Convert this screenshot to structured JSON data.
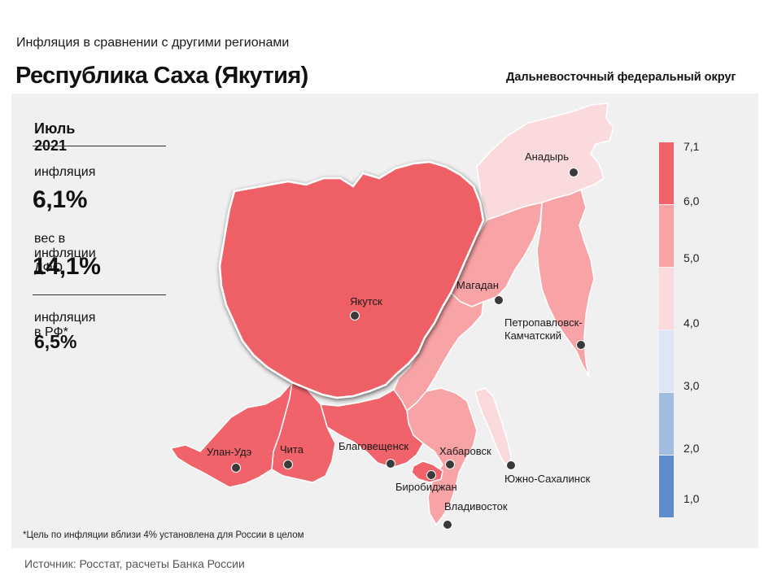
{
  "header": {
    "subtitle": "Инфляция  в сравнении  с другими  регионами",
    "title": "Республика Саха (Якутия)",
    "district": "Дальневосточный федеральный округ"
  },
  "info": {
    "period": "Июль 2021",
    "inflation_label": "инфляция",
    "inflation_value": "6,1%",
    "weight_label": "вес в инфляции  ДФО",
    "weight_value": "14,1%",
    "rf_label": "инфляция  в РФ*",
    "rf_value": "6,5%"
  },
  "footnote": "*Цель по инфляции вблизи 4% установлена для России в целом",
  "source": "Источник: Росстат, расчеты Банка России",
  "legend": {
    "ticks": [
      "7,1",
      "6,0",
      "5,0",
      "4,0",
      "3,0",
      "2,0",
      "1,0"
    ],
    "bins": [
      {
        "from": "6,0",
        "to": "7,1",
        "color": "#f0636b"
      },
      {
        "from": "5,0",
        "to": "6,0",
        "color": "#f8a3a6"
      },
      {
        "from": "4,0",
        "to": "5,0",
        "color": "#fadadd"
      },
      {
        "from": "3,0",
        "to": "4,0",
        "color": "#dde6f5"
      },
      {
        "from": "2,0",
        "to": "3,0",
        "color": "#a2bce0"
      },
      {
        "from": "1,0",
        "to": "2,0",
        "color": "#5e8ccb"
      }
    ]
  },
  "cities": [
    "Анадырь",
    "Магадан",
    "Петропавловск-",
    "Камчатский",
    "Якутск",
    "Улан-Удэ",
    "Чита",
    "Благовещенск",
    "Хабаровск",
    "Биробиджан",
    "Южно-Сахалинск",
    "Владивосток"
  ],
  "colors": {
    "high": "#f0636b",
    "mid": "#f8a3a6",
    "low": "#fadadd",
    "highlight": "#ef5f66",
    "panel": "#f0f0f0"
  }
}
